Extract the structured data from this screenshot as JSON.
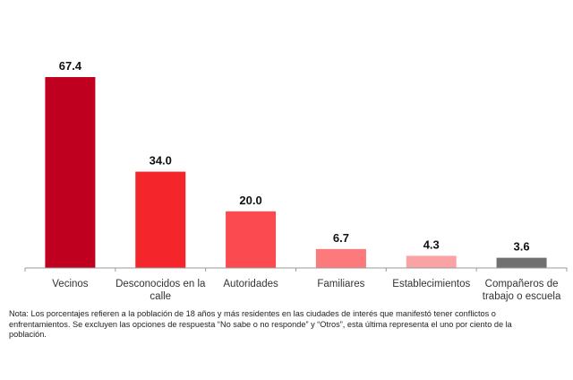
{
  "chart_data": {
    "type": "bar",
    "categories": [
      "Vecinos",
      "Desconocidos en la calle",
      "Autoridades",
      "Familiares",
      "Establecimientos",
      "Compañeros de trabajo o escuela"
    ],
    "category_lines": [
      [
        "Vecinos"
      ],
      [
        "Desconocidos en la",
        "calle"
      ],
      [
        "Autoridades"
      ],
      [
        "Familiares"
      ],
      [
        "Establecimientos"
      ],
      [
        "Compañeros de",
        "trabajo o escuela"
      ]
    ],
    "values": [
      67.4,
      34.0,
      20.0,
      6.7,
      4.3,
      3.6
    ],
    "value_labels": [
      "67.4",
      "34.0",
      "20.0",
      "6.7",
      "4.3",
      "3.6"
    ],
    "colors": [
      "#c0001f",
      "#f5262b",
      "#fb4b51",
      "#fd7a7c",
      "#fba3a4",
      "#707070"
    ],
    "title": "",
    "xlabel": "",
    "ylabel": "",
    "ylim": [
      0,
      67.4
    ],
    "grid": false,
    "legend": "none"
  },
  "note": "Nota: Los porcentajes refieren a la población de 18 años y más residentes en las ciudades de interés que manifestó tener conflictos o enfrentamientos. Se excluyen las opciones de respuesta “No sabe o no responde” y “Otros”, esta última representa el uno por ciento de la población."
}
